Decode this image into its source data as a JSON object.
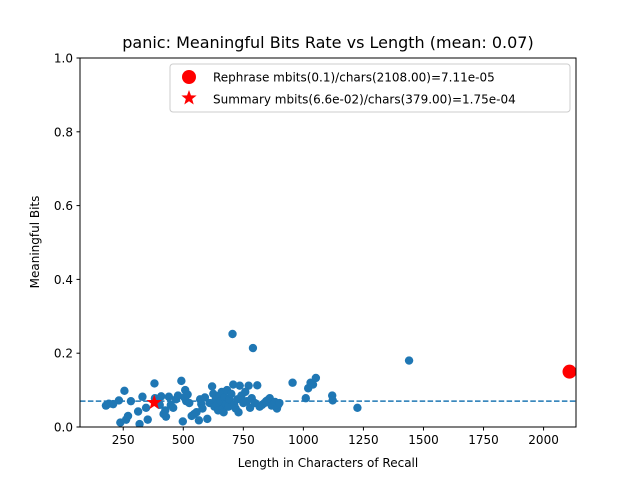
{
  "chart_data": {
    "type": "scatter",
    "title": "panic: Meaningful Bits Rate vs Length (mean: 0.07)",
    "xlabel": "Length in Characters of Recall",
    "ylabel": "Meaningful Bits",
    "xlim": [
      70,
      2135
    ],
    "ylim": [
      0,
      1.0
    ],
    "xticks": [
      250,
      500,
      750,
      1000,
      1250,
      1500,
      1750,
      2000
    ],
    "xtick_labels": [
      "250",
      "500",
      "750",
      "1000",
      "1250",
      "1500",
      "1750",
      "2000"
    ],
    "yticks": [
      0.0,
      0.2,
      0.4,
      0.6,
      0.8,
      1.0
    ],
    "ytick_labels": [
      "0.0",
      "0.2",
      "0.4",
      "0.6",
      "0.8",
      "1.0"
    ],
    "grid": false,
    "legend_position": "top-right",
    "mean_line": {
      "y": 0.07,
      "style": "dashed",
      "color": "#1f77b4"
    },
    "series": [
      {
        "color": "#1f77b4",
        "marker": "circle",
        "points": [
          [
            178,
            0.058
          ],
          [
            190,
            0.063
          ],
          [
            208,
            0.062
          ],
          [
            232,
            0.072
          ],
          [
            238,
            0.012
          ],
          [
            255,
            0.098
          ],
          [
            262,
            0.02
          ],
          [
            270,
            0.03
          ],
          [
            282,
            0.07
          ],
          [
            312,
            0.042
          ],
          [
            318,
            0.008
          ],
          [
            330,
            0.082
          ],
          [
            345,
            0.052
          ],
          [
            352,
            0.02
          ],
          [
            380,
            0.118
          ],
          [
            382,
            0.078
          ],
          [
            390,
            0.07
          ],
          [
            402,
            0.06
          ],
          [
            408,
            0.083
          ],
          [
            418,
            0.035
          ],
          [
            425,
            0.045
          ],
          [
            428,
            0.028
          ],
          [
            440,
            0.082
          ],
          [
            448,
            0.06
          ],
          [
            458,
            0.052
          ],
          [
            470,
            0.075
          ],
          [
            478,
            0.085
          ],
          [
            492,
            0.125
          ],
          [
            498,
            0.015
          ],
          [
            505,
            0.08
          ],
          [
            508,
            0.1
          ],
          [
            512,
            0.07
          ],
          [
            518,
            0.088
          ],
          [
            525,
            0.065
          ],
          [
            535,
            0.03
          ],
          [
            545,
            0.035
          ],
          [
            555,
            0.04
          ],
          [
            565,
            0.018
          ],
          [
            570,
            0.075
          ],
          [
            575,
            0.062
          ],
          [
            580,
            0.05
          ],
          [
            590,
            0.08
          ],
          [
            600,
            0.022
          ],
          [
            610,
            0.065
          ],
          [
            620,
            0.11
          ],
          [
            625,
            0.09
          ],
          [
            630,
            0.055
          ],
          [
            635,
            0.075
          ],
          [
            640,
            0.06
          ],
          [
            645,
            0.045
          ],
          [
            650,
            0.085
          ],
          [
            655,
            0.07
          ],
          [
            660,
            0.095
          ],
          [
            665,
            0.05
          ],
          [
            668,
            0.04
          ],
          [
            672,
            0.08
          ],
          [
            678,
            0.062
          ],
          [
            682,
            0.1
          ],
          [
            688,
            0.055
          ],
          [
            692,
            0.075
          ],
          [
            700,
            0.09
          ],
          [
            705,
            0.252
          ],
          [
            708,
            0.115
          ],
          [
            712,
            0.06
          ],
          [
            718,
            0.05
          ],
          [
            725,
            0.075
          ],
          [
            730,
            0.04
          ],
          [
            735,
            0.112
          ],
          [
            742,
            0.085
          ],
          [
            750,
            0.065
          ],
          [
            758,
            0.095
          ],
          [
            765,
            0.07
          ],
          [
            772,
            0.112
          ],
          [
            778,
            0.052
          ],
          [
            785,
            0.078
          ],
          [
            790,
            0.214
          ],
          [
            798,
            0.065
          ],
          [
            808,
            0.113
          ],
          [
            818,
            0.055
          ],
          [
            828,
            0.06
          ],
          [
            838,
            0.065
          ],
          [
            845,
            0.07
          ],
          [
            852,
            0.073
          ],
          [
            860,
            0.078
          ],
          [
            868,
            0.058
          ],
          [
            875,
            0.062
          ],
          [
            882,
            0.068
          ],
          [
            890,
            0.05
          ],
          [
            895,
            0.06
          ],
          [
            900,
            0.065
          ],
          [
            955,
            0.12
          ],
          [
            1010,
            0.078
          ],
          [
            1020,
            0.105
          ],
          [
            1030,
            0.12
          ],
          [
            1040,
            0.115
          ],
          [
            1052,
            0.133
          ],
          [
            1120,
            0.085
          ],
          [
            1122,
            0.072
          ],
          [
            1225,
            0.052
          ],
          [
            1440,
            0.18
          ]
        ]
      },
      {
        "name": "Rephrase mbits(0.1)/chars(2108.00)=7.11e-05",
        "color": "#ff0000",
        "marker": "large-circle",
        "points": [
          [
            2108,
            0.15
          ]
        ]
      },
      {
        "name": "Summary mbits(6.6e-02)/chars(379.00)=1.75e-04",
        "color": "#ff0000",
        "marker": "star",
        "points": [
          [
            379,
            0.066
          ]
        ]
      }
    ]
  }
}
